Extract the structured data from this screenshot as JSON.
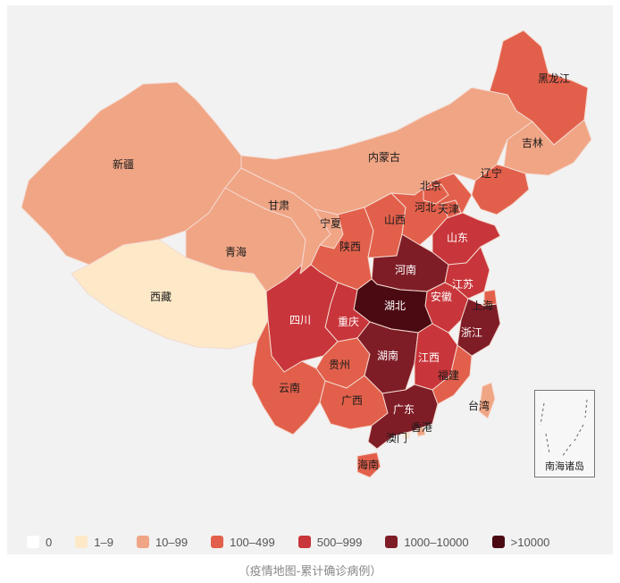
{
  "caption": "（疫情地图-累计确诊病例）",
  "colors": {
    "c0": "#ffffff",
    "c1": "#fde9c8",
    "c2": "#f0a585",
    "c3": "#e2604b",
    "c4": "#c8353a",
    "c5": "#7f1d27",
    "c6": "#4b0a12"
  },
  "legend": [
    {
      "label": "0",
      "color": "#ffffff"
    },
    {
      "label": "1–9",
      "color": "#fde9c8"
    },
    {
      "label": "10–99",
      "color": "#f0a585"
    },
    {
      "label": "100–499",
      "color": "#e2604b"
    },
    {
      "label": "500–999",
      "color": "#c8353a"
    },
    {
      "label": "1000–10000",
      "color": "#7f1d27"
    },
    {
      "label": ">10000",
      "color": "#4b0a12"
    }
  ],
  "provinces": [
    {
      "name": "黑龙江",
      "level": "100–499"
    },
    {
      "name": "吉林",
      "level": "10–99"
    },
    {
      "name": "辽宁",
      "level": "100–499"
    },
    {
      "name": "内蒙古",
      "level": "10–99"
    },
    {
      "name": "新疆",
      "level": "10–99"
    },
    {
      "name": "西藏",
      "level": "1–9"
    },
    {
      "name": "青海",
      "level": "10–99"
    },
    {
      "name": "甘肃",
      "level": "10–99"
    },
    {
      "name": "宁夏",
      "level": "10–99"
    },
    {
      "name": "陕西",
      "level": "100–499"
    },
    {
      "name": "山西",
      "level": "100–499"
    },
    {
      "name": "河北",
      "level": "100–499"
    },
    {
      "name": "北京",
      "level": "100–499"
    },
    {
      "name": "天津",
      "level": "100–499"
    },
    {
      "name": "山东",
      "level": "500–999"
    },
    {
      "name": "河南",
      "level": "1000–10000"
    },
    {
      "name": "江苏",
      "level": "500–999"
    },
    {
      "name": "安徽",
      "level": "500–999"
    },
    {
      "name": "上海",
      "level": "100–499"
    },
    {
      "name": "湖北",
      "level": ">10000"
    },
    {
      "name": "浙江",
      "level": "1000–10000"
    },
    {
      "name": "四川",
      "level": "500–999"
    },
    {
      "name": "重庆",
      "level": "500–999"
    },
    {
      "name": "贵州",
      "level": "100–499"
    },
    {
      "name": "湖南",
      "level": "1000–10000"
    },
    {
      "name": "江西",
      "level": "500–999"
    },
    {
      "name": "福建",
      "level": "100–499"
    },
    {
      "name": "云南",
      "level": "100–499"
    },
    {
      "name": "广西",
      "level": "100–499"
    },
    {
      "name": "广东",
      "level": "1000–10000"
    },
    {
      "name": "香港",
      "level": "10–99"
    },
    {
      "name": "澳门",
      "level": "1–9"
    },
    {
      "name": "台湾",
      "level": "10–99"
    },
    {
      "name": "海南",
      "level": "100–499"
    }
  ],
  "inset_label": "南海诸岛"
}
